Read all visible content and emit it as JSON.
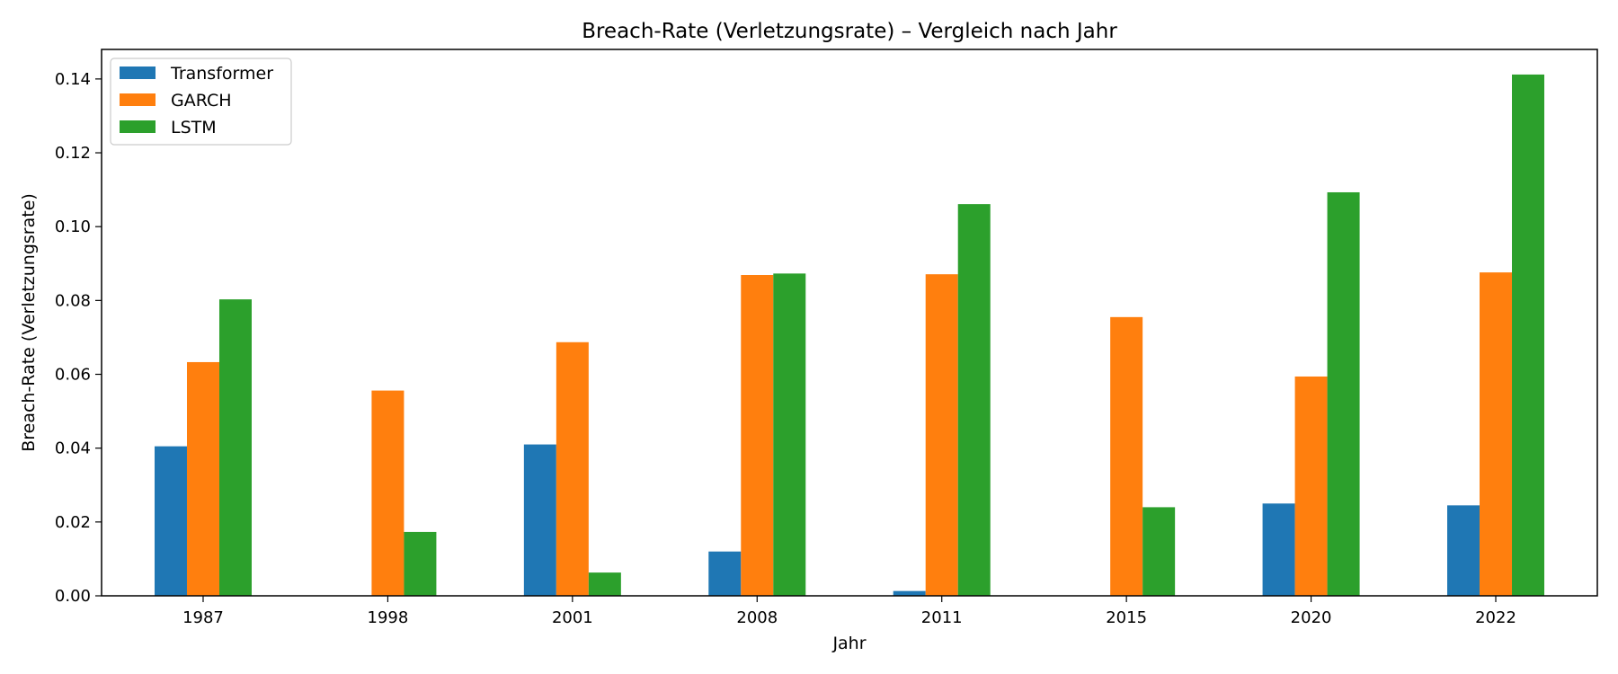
{
  "chart_data": {
    "type": "bar",
    "title": "Breach-Rate (Verletzungsrate) – Vergleich nach Jahr",
    "xlabel": "Jahr",
    "ylabel": "Breach-Rate (Verletzungsrate)",
    "categories": [
      "1987",
      "1998",
      "2001",
      "2008",
      "2011",
      "2015",
      "2020",
      "2022"
    ],
    "ylim": [
      0,
      0.148
    ],
    "yticks": [
      "0.00",
      "0.02",
      "0.04",
      "0.06",
      "0.08",
      "0.10",
      "0.12",
      "0.14"
    ],
    "grid": false,
    "legend_position": "top-left",
    "series": [
      {
        "name": "Transformer",
        "color": "#1f77b4",
        "values": [
          0.0405,
          0.0,
          0.041,
          0.012,
          0.0013,
          0.0,
          0.025,
          0.0245
        ]
      },
      {
        "name": "GARCH",
        "color": "#ff7f0e",
        "values": [
          0.0633,
          0.0556,
          0.0687,
          0.0869,
          0.0871,
          0.0755,
          0.0594,
          0.0876
        ]
      },
      {
        "name": "LSTM",
        "color": "#2ca02c",
        "values": [
          0.0803,
          0.0173,
          0.0063,
          0.0873,
          0.1061,
          0.024,
          0.1093,
          0.1412
        ]
      }
    ]
  }
}
